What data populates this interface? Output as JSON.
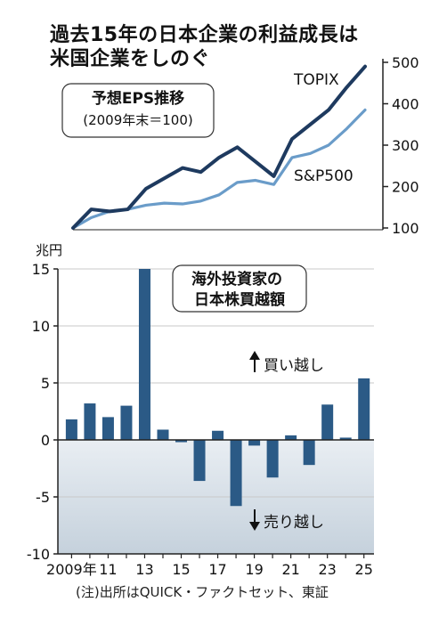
{
  "title": "過去15年の日本企業の利益成長は\n米国企業をしのぐ",
  "note": "(注)出所はQUICK・ファクトセット、東証",
  "colors": {
    "topix": "#1e3a5f",
    "sp500": "#6a9cc9",
    "bar": "#2b5a86",
    "axis": "#222222",
    "grid": "#c8c8c8",
    "negative_fill_top": "#e9eef3",
    "negative_fill_bottom": "#c5d1dc"
  },
  "chart_data": [
    {
      "type": "line",
      "title": "予想EPS推移",
      "subtitle": "(2009年末＝100)",
      "x": [
        2009,
        2010,
        2011,
        2012,
        2013,
        2014,
        2015,
        2016,
        2017,
        2018,
        2019,
        2020,
        2021,
        2022,
        2023,
        2024,
        2025
      ],
      "series": [
        {
          "name": "TOPIX",
          "values": [
            100,
            145,
            140,
            145,
            195,
            220,
            245,
            235,
            270,
            295,
            260,
            225,
            315,
            350,
            385,
            440,
            490
          ]
        },
        {
          "name": "S&P500",
          "values": [
            100,
            125,
            140,
            145,
            155,
            160,
            158,
            165,
            180,
            210,
            215,
            205,
            270,
            280,
            300,
            340,
            385
          ]
        }
      ],
      "yticks": [
        100,
        200,
        300,
        400,
        500
      ],
      "ylim": [
        100,
        500
      ],
      "grid": false
    },
    {
      "type": "bar",
      "title": "海外投資家の\n日本株買越額",
      "ylabel": "兆円",
      "x": [
        2009,
        2010,
        2011,
        2012,
        2013,
        2014,
        2015,
        2016,
        2017,
        2018,
        2019,
        2020,
        2021,
        2022,
        2023,
        2024,
        2025
      ],
      "values": [
        1.8,
        3.2,
        2.0,
        3.0,
        15.0,
        0.9,
        -0.2,
        -3.6,
        0.8,
        -5.8,
        -0.5,
        -3.3,
        0.4,
        -2.2,
        3.1,
        0.2,
        5.4
      ],
      "xticks": [
        "2009年",
        "11",
        "13",
        "15",
        "17",
        "19",
        "21",
        "23",
        "25"
      ],
      "yticks": [
        15,
        10,
        5,
        0,
        -5,
        -10
      ],
      "ylim": [
        -10,
        15
      ],
      "annotations": {
        "buy": "買い越し",
        "sell": "売り越し"
      },
      "grid": true
    }
  ]
}
